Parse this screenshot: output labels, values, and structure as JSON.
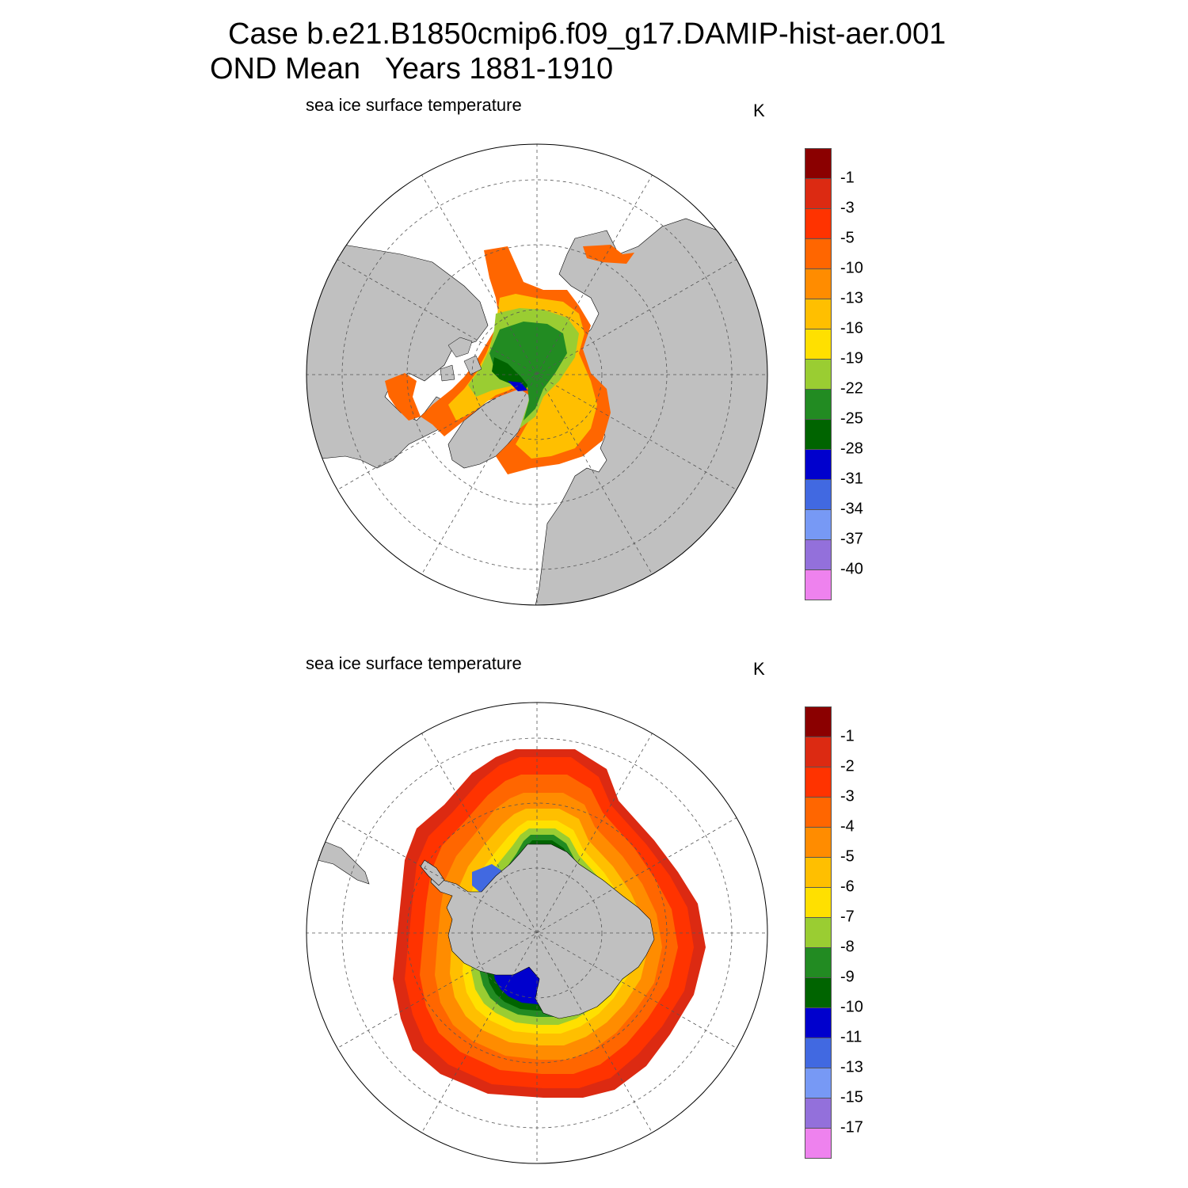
{
  "figure": {
    "title_line1": "Case b.e21.B1850cmip6.f09_g17.DAMIP-hist-aer.001",
    "title_line2": "OND Mean   Years 1881-1910"
  },
  "panels": [
    {
      "hemisphere": "north",
      "subtitle": "sea ice surface temperature",
      "units": "K",
      "colorbar_labels": [
        "-1",
        "-3",
        "-5",
        "-10",
        "-13",
        "-16",
        "-19",
        "-22",
        "-25",
        "-28",
        "-31",
        "-34",
        "-37",
        "-40"
      ]
    },
    {
      "hemisphere": "south",
      "subtitle": "sea ice surface temperature",
      "units": "K",
      "colorbar_labels": [
        "-1",
        "-2",
        "-3",
        "-4",
        "-5",
        "-6",
        "-7",
        "-8",
        "-9",
        "-10",
        "-11",
        "-13",
        "-15",
        "-17"
      ]
    }
  ],
  "colors": {
    "palette": [
      "#8b0000",
      "#dc2a12",
      "#ff3300",
      "#ff6600",
      "#ff8c00",
      "#ffbf00",
      "#ffe000",
      "#9acd32",
      "#228b22",
      "#006400",
      "#0000cd",
      "#4169e1",
      "#7799f5",
      "#9370db",
      "#ee82ee"
    ],
    "land": "#c0c0c0",
    "ocean": "#ffffff"
  }
}
